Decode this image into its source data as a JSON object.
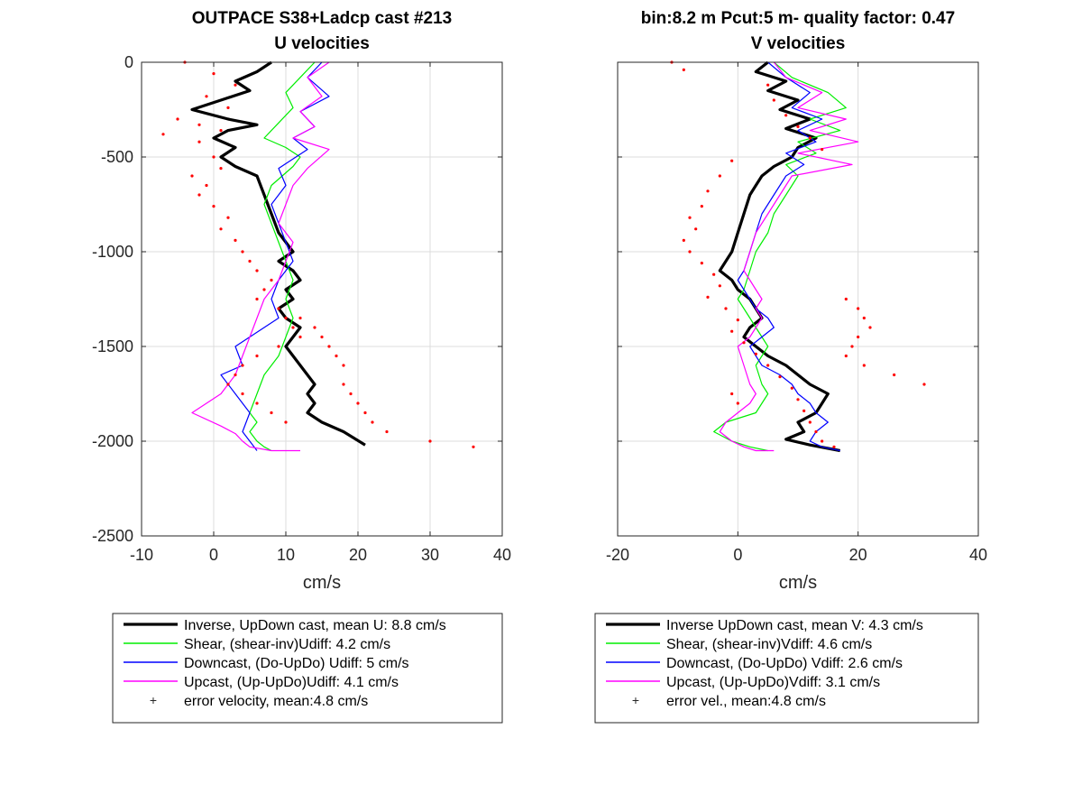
{
  "chart_data": [
    {
      "type": "line",
      "title": "OUTPACE S38+Ladcp cast #213",
      "subtitle": "U velocities",
      "xlabel": "cm/s",
      "ylabel": "",
      "xlim": [
        -10,
        40
      ],
      "ylim": [
        -2500,
        0
      ],
      "xticks": [
        "-10",
        "0",
        "10",
        "20",
        "30",
        "40"
      ],
      "yticks": [
        "0",
        "-500",
        "-1000",
        "-1500",
        "-2000",
        "-2500"
      ],
      "grid": true,
      "legend_position": "below",
      "series": [
        {
          "name": "Inverse, UpDown cast, mean U:  8.8 cm/s",
          "color": "#000000",
          "x": [
            8,
            6,
            3,
            5,
            1,
            -3,
            2,
            6,
            2,
            0,
            3,
            1,
            3,
            6,
            7,
            8,
            9,
            10,
            11,
            9,
            11,
            12,
            10,
            11,
            9,
            10,
            12,
            11,
            10,
            11,
            12,
            13,
            14,
            13,
            14,
            13,
            15,
            18,
            21
          ],
          "y": [
            0,
            -50,
            -100,
            -150,
            -200,
            -250,
            -300,
            -330,
            -360,
            -400,
            -450,
            -500,
            -550,
            -600,
            -700,
            -800,
            -900,
            -950,
            -1000,
            -1050,
            -1100,
            -1150,
            -1200,
            -1250,
            -1300,
            -1350,
            -1400,
            -1450,
            -1500,
            -1550,
            -1600,
            -1650,
            -1700,
            -1750,
            -1800,
            -1850,
            -1900,
            -1950,
            -2020
          ]
        },
        {
          "name": "Shear, (shear-inv)Udiff:  4.2 cm/s",
          "color": "#00ee00",
          "x": [
            14,
            12,
            10,
            11,
            9,
            7,
            10,
            12,
            11,
            8,
            7,
            8,
            9,
            10,
            11,
            10,
            11,
            10,
            9,
            7,
            6,
            5,
            6,
            5,
            6,
            7,
            8
          ],
          "y": [
            0,
            -80,
            -160,
            -240,
            -320,
            -400,
            -450,
            -500,
            -550,
            -650,
            -750,
            -850,
            -950,
            -1050,
            -1150,
            -1250,
            -1350,
            -1450,
            -1550,
            -1650,
            -1750,
            -1850,
            -1900,
            -1950,
            -2000,
            -2030,
            -2050
          ]
        },
        {
          "name": "Downcast, (Do-UpDo) Udiff:  5 cm/s",
          "color": "#0000ff",
          "x": [
            15,
            13,
            16,
            12,
            14,
            11,
            13,
            9,
            10,
            8,
            9,
            10,
            11,
            9,
            8,
            9,
            7,
            5,
            3,
            4,
            1,
            3,
            5,
            4,
            5,
            6
          ],
          "y": [
            0,
            -80,
            -180,
            -260,
            -340,
            -400,
            -460,
            -560,
            -650,
            -750,
            -850,
            -950,
            -1050,
            -1150,
            -1250,
            -1350,
            -1400,
            -1450,
            -1500,
            -1600,
            -1650,
            -1750,
            -1850,
            -1950,
            -2000,
            -2050
          ]
        },
        {
          "name": "Upcast, (Up-UpDo)Udiff:  4.1 cm/s",
          "color": "#ff00ff",
          "x": [
            16,
            13,
            15,
            12,
            14,
            11,
            16,
            13,
            11,
            10,
            9,
            11,
            10,
            9,
            7,
            6,
            5,
            4,
            3,
            1,
            -3,
            1,
            3,
            4,
            5,
            8,
            12
          ],
          "y": [
            0,
            -80,
            -180,
            -260,
            -340,
            -400,
            -460,
            -560,
            -650,
            -750,
            -850,
            -950,
            -1050,
            -1150,
            -1250,
            -1350,
            -1450,
            -1550,
            -1650,
            -1750,
            -1850,
            -1920,
            -1960,
            -2000,
            -2030,
            -2050,
            -2050
          ]
        },
        {
          "name": "error velocity, mean:4.8 cm/s",
          "color": "#ff0000",
          "style": "points",
          "x": [
            -4,
            0,
            3,
            -1,
            2,
            -5,
            -2,
            1,
            -7,
            -2,
            0,
            1,
            -3,
            -1,
            -2,
            0,
            2,
            1,
            3,
            4,
            5,
            6,
            8,
            7,
            6,
            9,
            10,
            11,
            12,
            9,
            6,
            4,
            3,
            2,
            4,
            6,
            8,
            10,
            12,
            14,
            15,
            16,
            17,
            18,
            18,
            19,
            20,
            21,
            22,
            24,
            30,
            36
          ],
          "y": [
            0,
            -60,
            -120,
            -180,
            -240,
            -300,
            -330,
            -360,
            -380,
            -420,
            -500,
            -560,
            -600,
            -650,
            -700,
            -760,
            -820,
            -880,
            -940,
            -1000,
            -1050,
            -1100,
            -1150,
            -1200,
            -1250,
            -1300,
            -1350,
            -1400,
            -1450,
            -1500,
            -1550,
            -1600,
            -1650,
            -1700,
            -1750,
            -1800,
            -1850,
            -1900,
            -1350,
            -1400,
            -1450,
            -1500,
            -1550,
            -1600,
            -1700,
            -1750,
            -1800,
            -1850,
            -1900,
            -1950,
            -2000,
            -2030
          ]
        }
      ]
    },
    {
      "type": "line",
      "title": "bin:8.2 m  Pcut:5 m- quality factor:  0.47",
      "subtitle": "V velocities",
      "xlabel": "cm/s",
      "ylabel": "",
      "xlim": [
        -20,
        40
      ],
      "ylim": [
        -2500,
        0
      ],
      "xticks": [
        "-20",
        "0",
        "20",
        "40"
      ],
      "yticks": [],
      "grid": true,
      "legend_position": "below",
      "series": [
        {
          "name": "Inverse UpDown cast, mean V:  4.3 cm/s",
          "color": "#000000",
          "x": [
            5,
            3,
            8,
            5,
            10,
            7,
            12,
            8,
            13,
            10,
            9,
            6,
            4,
            3,
            2,
            1,
            0,
            -1,
            -2,
            -3,
            -1,
            0,
            2,
            3,
            4,
            2,
            1,
            3,
            5,
            8,
            10,
            12,
            15,
            14,
            13,
            10,
            11,
            8,
            12,
            17
          ],
          "y": [
            0,
            -50,
            -100,
            -150,
            -200,
            -250,
            -300,
            -350,
            -400,
            -450,
            -500,
            -550,
            -600,
            -650,
            -700,
            -800,
            -900,
            -1000,
            -1050,
            -1100,
            -1150,
            -1200,
            -1250,
            -1300,
            -1350,
            -1400,
            -1450,
            -1500,
            -1550,
            -1600,
            -1650,
            -1700,
            -1750,
            -1800,
            -1850,
            -1900,
            -1950,
            -1990,
            -2020,
            -2050
          ]
        },
        {
          "name": "Shear, (shear-inv)Vdiff:  4.6 cm/s",
          "color": "#00ee00",
          "x": [
            6,
            9,
            15,
            18,
            12,
            17,
            10,
            13,
            8,
            10,
            8,
            6,
            5,
            3,
            2,
            1,
            0,
            1,
            2,
            3,
            4,
            5,
            4,
            3,
            4,
            5,
            4,
            3,
            -2,
            -4,
            -1,
            2,
            5
          ],
          "y": [
            0,
            -80,
            -160,
            -240,
            -300,
            -360,
            -420,
            -480,
            -540,
            -600,
            -700,
            -800,
            -900,
            -1000,
            -1100,
            -1200,
            -1250,
            -1300,
            -1350,
            -1400,
            -1450,
            -1500,
            -1550,
            -1600,
            -1700,
            -1750,
            -1800,
            -1850,
            -1900,
            -1950,
            -2000,
            -2030,
            -2050
          ]
        },
        {
          "name": "Downcast, (Do-UpDo) Vdiff:  2.6 cm/s",
          "color": "#0000ff",
          "x": [
            5,
            8,
            12,
            9,
            14,
            10,
            13,
            8,
            11,
            8,
            6,
            4,
            3,
            2,
            1,
            0,
            1,
            3,
            5,
            6,
            4,
            2,
            3,
            4,
            7,
            9,
            10,
            12,
            13,
            15,
            13,
            12,
            14,
            17
          ],
          "y": [
            0,
            -80,
            -160,
            -240,
            -300,
            -360,
            -420,
            -480,
            -540,
            -600,
            -700,
            -800,
            -900,
            -1000,
            -1100,
            -1150,
            -1200,
            -1300,
            -1350,
            -1400,
            -1450,
            -1500,
            -1550,
            -1600,
            -1650,
            -1700,
            -1750,
            -1800,
            -1850,
            -1900,
            -1950,
            -2000,
            -2030,
            -2050
          ]
        },
        {
          "name": "Upcast, (Up-UpDo)Vdiff:  3.1 cm/s",
          "color": "#ff00ff",
          "x": [
            6,
            8,
            14,
            10,
            18,
            12,
            20,
            10,
            19,
            9,
            7,
            5,
            3,
            2,
            1,
            2,
            3,
            4,
            3,
            4,
            3,
            2,
            0,
            1,
            2,
            3,
            2,
            0,
            -2,
            -3,
            -1,
            1,
            3,
            6
          ],
          "y": [
            0,
            -80,
            -160,
            -240,
            -300,
            -360,
            -420,
            -480,
            -540,
            -600,
            -700,
            -800,
            -900,
            -1000,
            -1100,
            -1150,
            -1200,
            -1250,
            -1300,
            -1350,
            -1400,
            -1450,
            -1500,
            -1600,
            -1700,
            -1750,
            -1800,
            -1850,
            -1900,
            -1950,
            -2000,
            -2030,
            -2050,
            -2050
          ]
        },
        {
          "name": "error vel., mean:4.8 cm/s",
          "color": "#ff0000",
          "style": "points",
          "x": [
            -11,
            -9,
            5,
            6,
            8,
            10,
            12,
            14,
            -1,
            -3,
            -5,
            -6,
            -8,
            -7,
            -9,
            -8,
            -6,
            -4,
            -3,
            -5,
            -2,
            0,
            -1,
            1,
            3,
            5,
            7,
            9,
            10,
            11,
            12,
            13,
            14,
            16,
            18,
            20,
            21,
            22,
            20,
            19,
            18,
            21,
            26,
            31,
            -1,
            0
          ],
          "y": [
            0,
            -40,
            -120,
            -200,
            -280,
            -340,
            -400,
            -460,
            -520,
            -600,
            -680,
            -760,
            -820,
            -880,
            -940,
            -1000,
            -1060,
            -1120,
            -1180,
            -1240,
            -1300,
            -1360,
            -1420,
            -1480,
            -1540,
            -1600,
            -1660,
            -1720,
            -1780,
            -1840,
            -1900,
            -1950,
            -2000,
            -2030,
            -1250,
            -1300,
            -1350,
            -1400,
            -1450,
            -1500,
            -1550,
            -1600,
            -1650,
            -1700,
            -1750,
            -1800
          ]
        }
      ]
    }
  ]
}
